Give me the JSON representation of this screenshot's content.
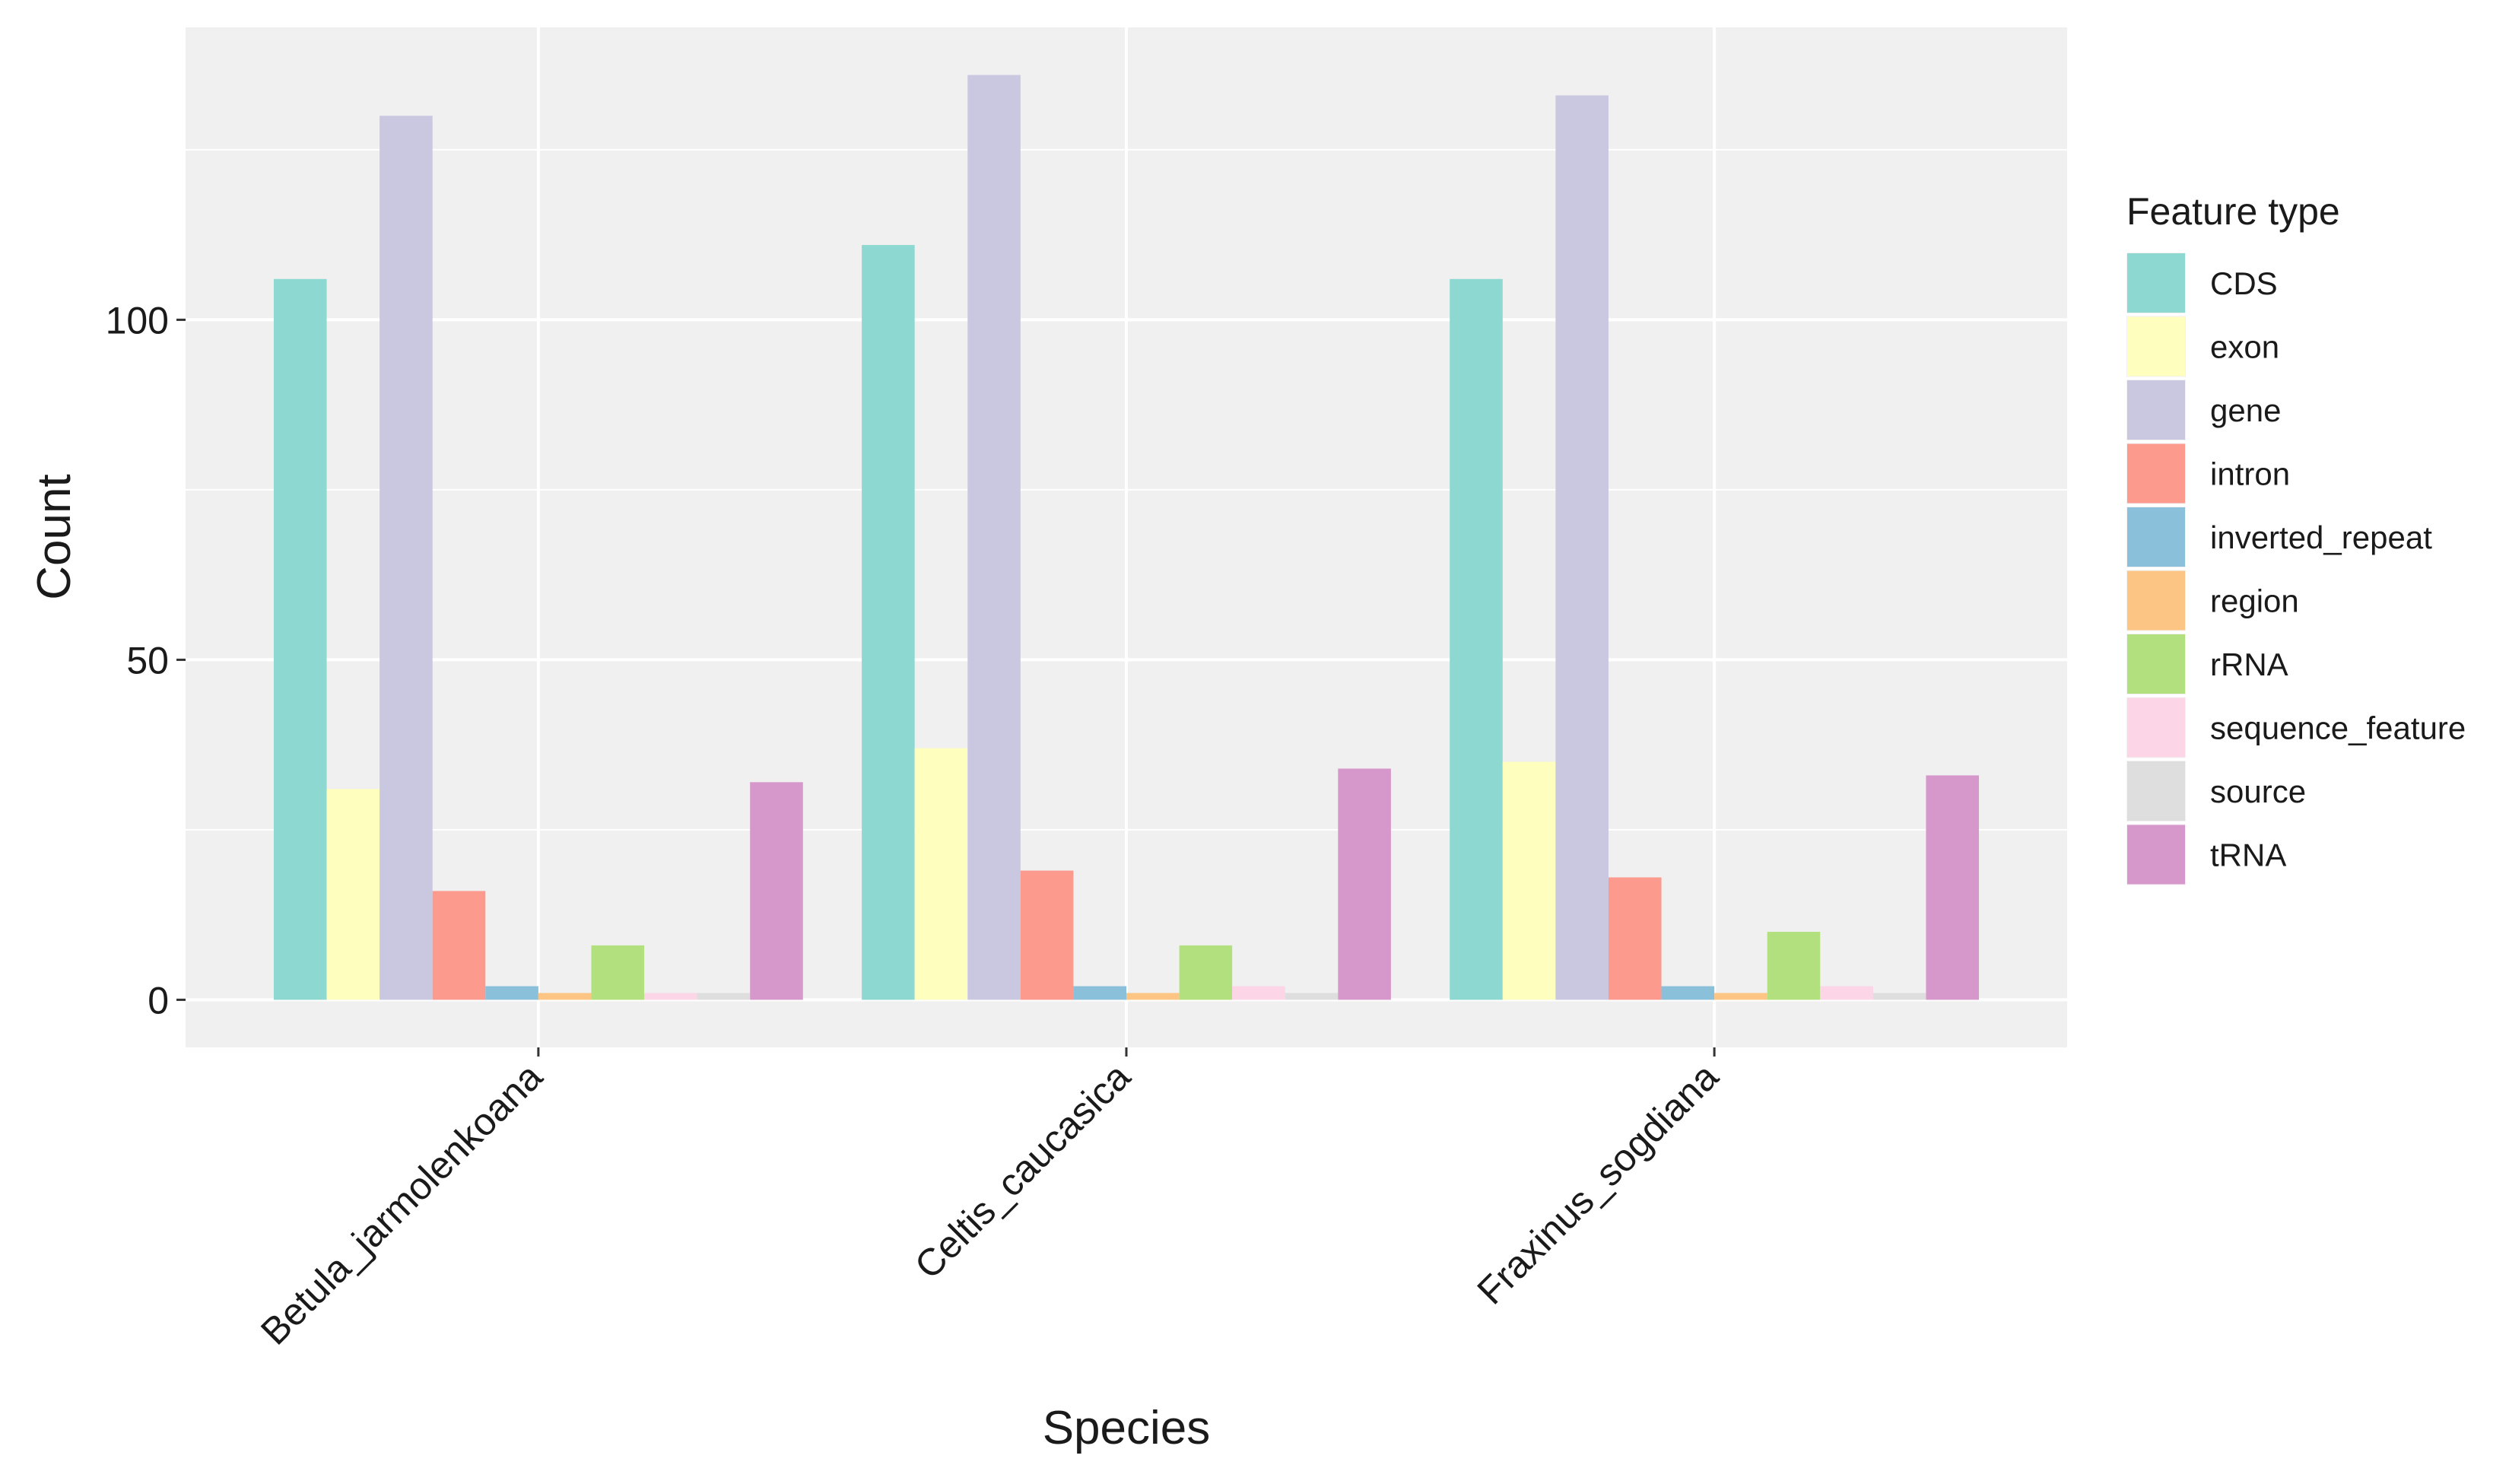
{
  "chart_data": {
    "type": "bar",
    "title": "",
    "xlabel": "Species",
    "ylabel": "Count",
    "ylim": [
      -7,
      143
    ],
    "yticks": [
      0,
      50,
      100
    ],
    "grid": true,
    "legend_position": "right",
    "legend_title": "Feature type",
    "categories": [
      "Betula_jarmolenkoana",
      "Celtis_caucasica",
      "Fraxinus_sogdiana"
    ],
    "series": [
      {
        "name": "CDS",
        "color": "#8dd9d1",
        "values": [
          106,
          111,
          106
        ]
      },
      {
        "name": "exon",
        "color": "#fefebf",
        "values": [
          31,
          37,
          35
        ]
      },
      {
        "name": "gene",
        "color": "#cac8e0",
        "values": [
          130,
          136,
          133
        ]
      },
      {
        "name": "intron",
        "color": "#fc9a8e",
        "values": [
          16,
          19,
          18
        ]
      },
      {
        "name": "inverted_repeat",
        "color": "#8ac0da",
        "values": [
          2,
          2,
          2
        ]
      },
      {
        "name": "region",
        "color": "#fdc584",
        "values": [
          1,
          1,
          1
        ]
      },
      {
        "name": "rRNA",
        "color": "#b2e07e",
        "values": [
          8,
          8,
          10
        ]
      },
      {
        "name": "sequence_feature",
        "color": "#fcd5e7",
        "values": [
          1,
          2,
          2
        ]
      },
      {
        "name": "source",
        "color": "#dedede",
        "values": [
          1,
          1,
          1
        ]
      },
      {
        "name": "tRNA",
        "color": "#d697cb",
        "values": [
          32,
          34,
          33
        ]
      }
    ]
  },
  "colors": {
    "panel_background": "#f0f0f0",
    "grid": "#ffffff"
  }
}
